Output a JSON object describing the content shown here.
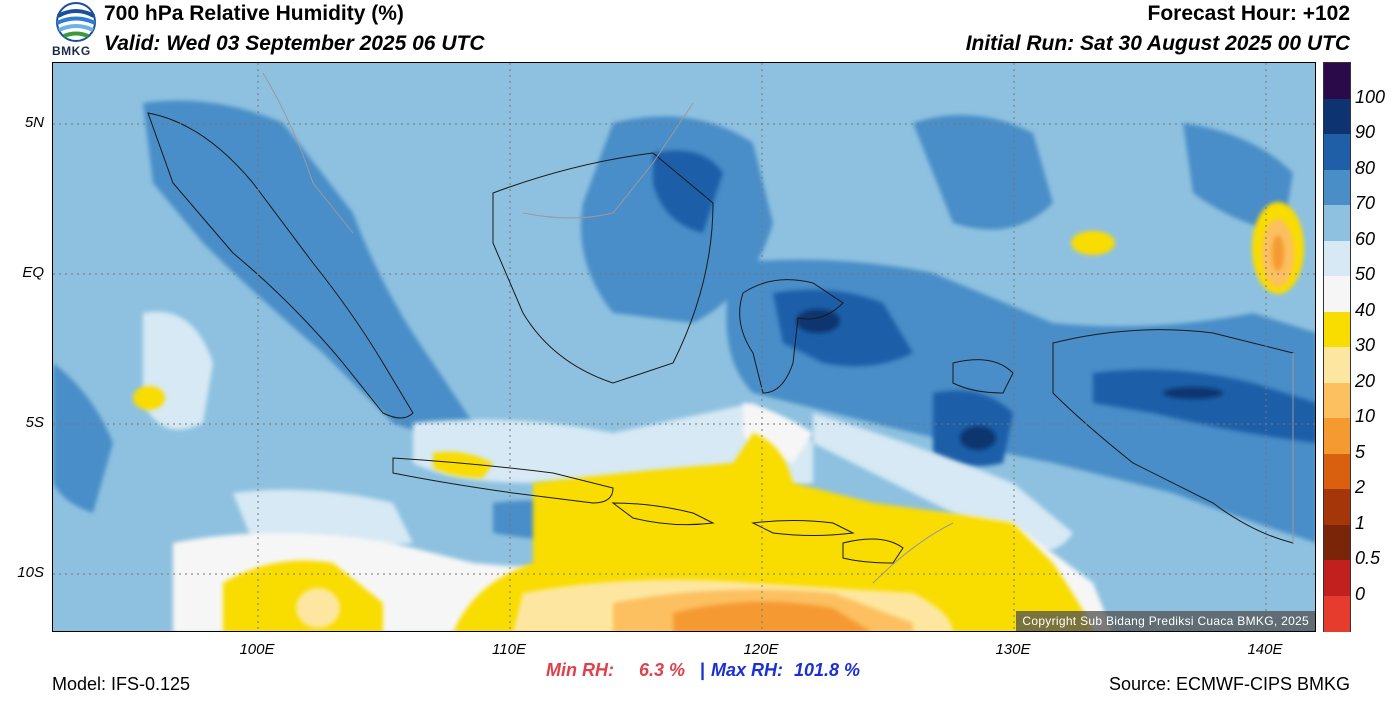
{
  "header": {
    "title": "700 hPa Relative Humidity (%)",
    "valid": "Valid: Wed 03 September 2025 06 UTC",
    "forecast_hour": "Forecast Hour: +102",
    "initial_run": "Initial Run: Sat 30 August 2025 00 UTC",
    "logo_text": "BMKG"
  },
  "map": {
    "lat_labels": [
      "5N",
      "EQ",
      "5S",
      "10S"
    ],
    "lon_labels": [
      "100E",
      "110E",
      "120E",
      "130E",
      "140E"
    ],
    "copyright": "Copyright Sub Bidang Prediksi Cuaca BMKG, 2025"
  },
  "colorbar": {
    "labels": [
      "100",
      "90",
      "80",
      "70",
      "60",
      "50",
      "40",
      "30",
      "20",
      "10",
      "5",
      "2",
      "1",
      "0.5",
      "0"
    ],
    "colors": [
      "#2b0a4a",
      "#0d3470",
      "#1f5fa8",
      "#4a8ec8",
      "#8ec1e0",
      "#d6e9f4",
      "#f6f6f6",
      "#f9dc00",
      "#fde7a0",
      "#fcc060",
      "#f59a30",
      "#d8600f",
      "#a5360a",
      "#7a2408",
      "#c21f1f",
      "#e63c2e"
    ]
  },
  "stats": {
    "min_label": "Min RH:",
    "min_value": "6.3 %",
    "separator": "|",
    "max_label": "Max RH:",
    "max_value": "101.8 %"
  },
  "footer": {
    "model": "Model: IFS-0.125",
    "source": "Source: ECMWF-CIPS BMKG"
  }
}
